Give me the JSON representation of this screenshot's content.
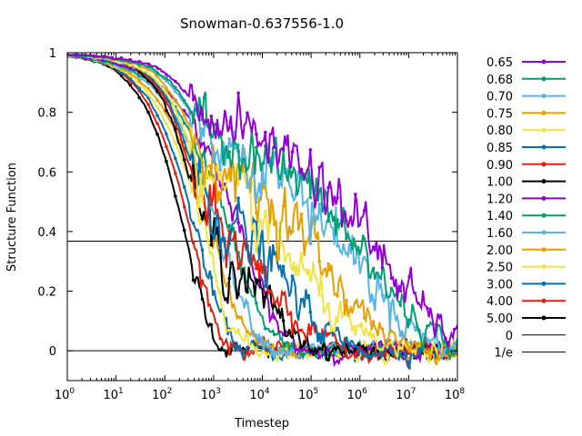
{
  "chart_data": {
    "type": "line",
    "title": "Snowman-0.637556-1.0",
    "xlabel": "Timestep",
    "ylabel": "Structure Function",
    "x_scale": "log10",
    "xlim": [
      1,
      100000000
    ],
    "ylim": [
      -0.1,
      1.0
    ],
    "x_ticks": [
      {
        "base": "10",
        "exp": "0",
        "value": 1
      },
      {
        "base": "10",
        "exp": "1",
        "value": 10
      },
      {
        "base": "10",
        "exp": "2",
        "value": 100
      },
      {
        "base": "10",
        "exp": "3",
        "value": 1000
      },
      {
        "base": "10",
        "exp": "4",
        "value": 10000
      },
      {
        "base": "10",
        "exp": "5",
        "value": 100000
      },
      {
        "base": "10",
        "exp": "6",
        "value": 1000000
      },
      {
        "base": "10",
        "exp": "7",
        "value": 10000000
      },
      {
        "base": "10",
        "exp": "8",
        "value": 100000000
      }
    ],
    "y_ticks": [
      {
        "label": "0",
        "value": 0
      },
      {
        "label": "0.2",
        "value": 0.2
      },
      {
        "label": "0.4",
        "value": 0.4
      },
      {
        "label": "0.6",
        "value": 0.6
      },
      {
        "label": "0.8",
        "value": 0.8
      },
      {
        "label": "1",
        "value": 1.0
      }
    ],
    "grid": false,
    "legend_position": "right",
    "reference_lines": [
      {
        "name": "0",
        "y": 0,
        "color": "#000000"
      },
      {
        "name": "1/e",
        "y": 0.3679,
        "color": "#000000"
      }
    ],
    "series": [
      {
        "name": "0.65",
        "color": "#9400d3",
        "tau": 3000000,
        "beta": 0.32,
        "plateau_y": 0.84,
        "plateau_end": 1000000
      },
      {
        "name": "0.68",
        "color": "#009e73",
        "tau": 1500000,
        "beta": 0.32,
        "plateau_y": 0.8,
        "plateau_end": 300000
      },
      {
        "name": "0.70",
        "color": "#56b4e9",
        "tau": 1000000,
        "beta": 0.33,
        "plateau_y": 0.78,
        "plateau_end": 200000
      },
      {
        "name": "0.75",
        "color": "#e69f00",
        "tau": 250000,
        "beta": 0.36,
        "plateau_y": 0.72,
        "plateau_end": 50000
      },
      {
        "name": "0.80",
        "color": "#f0e442",
        "tau": 80000,
        "beta": 0.38,
        "plateau_y": 0.66,
        "plateau_end": 15000
      },
      {
        "name": "0.85",
        "color": "#0072b2",
        "tau": 30000,
        "beta": 0.42,
        "plateau_y": 0.6,
        "plateau_end": 8000
      },
      {
        "name": "0.90",
        "color": "#e51e10",
        "tau": 18000,
        "beta": 0.45,
        "plateau_y": 0.55,
        "plateau_end": 5000
      },
      {
        "name": "1.00",
        "color": "#000000",
        "tau": 9000,
        "beta": 0.48,
        "plateau_y": 0.5,
        "plateau_end": 3000
      },
      {
        "name": "1.20",
        "color": "#9400d3",
        "tau": 4000,
        "beta": 0.55
      },
      {
        "name": "1.40",
        "color": "#009e73",
        "tau": 2500,
        "beta": 0.58
      },
      {
        "name": "1.60",
        "color": "#56b4e9",
        "tau": 1600,
        "beta": 0.62
      },
      {
        "name": "2.00",
        "color": "#e69f00",
        "tau": 1000,
        "beta": 0.66
      },
      {
        "name": "2.50",
        "color": "#f0e442",
        "tau": 700,
        "beta": 0.7
      },
      {
        "name": "3.00",
        "color": "#0072b2",
        "tau": 500,
        "beta": 0.74
      },
      {
        "name": "4.00",
        "color": "#e51e10",
        "tau": 380,
        "beta": 0.78
      },
      {
        "name": "5.00",
        "color": "#000000",
        "tau": 280,
        "beta": 0.82
      }
    ]
  }
}
